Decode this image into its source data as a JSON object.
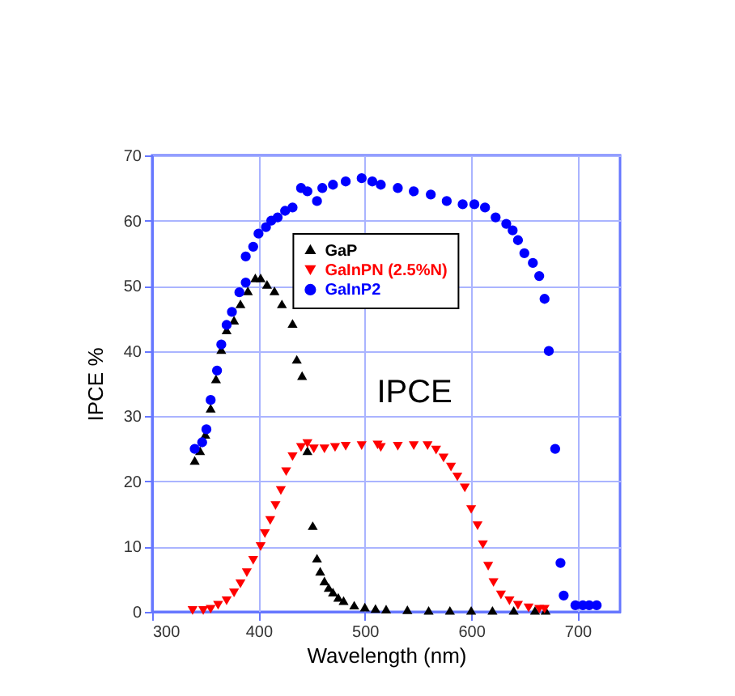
{
  "chart_data": {
    "type": "scatter",
    "xlabel": "Wavelength (nm)",
    "ylabel": "IPCE %",
    "annotations": [
      "IPCE"
    ],
    "xlim": [
      300,
      740
    ],
    "xticks": [
      300,
      400,
      500,
      600,
      700
    ],
    "ylim": [
      0,
      70
    ],
    "yticks": [
      0,
      10,
      20,
      30,
      40,
      50,
      60,
      70
    ],
    "grid": true,
    "legend": "top",
    "series": [
      {
        "name": "GaP",
        "color": "#000000",
        "marker": "triangle",
        "x": [
          340,
          345,
          350,
          355,
          360,
          365,
          370,
          377,
          383,
          390,
          397,
          402,
          408,
          415,
          422,
          432,
          436,
          441,
          446,
          451,
          455,
          458,
          462,
          466,
          470,
          475,
          480,
          490,
          500,
          510,
          520,
          540,
          560,
          580,
          600,
          620,
          640,
          660,
          670
        ],
        "values": [
          23,
          24.5,
          27,
          31,
          35.5,
          40,
          43,
          44.5,
          47,
          49,
          51,
          51,
          50,
          49,
          47,
          44,
          38.5,
          36,
          24.5,
          13,
          8,
          6,
          4.5,
          3.5,
          2.8,
          2,
          1.5,
          0.8,
          0.5,
          0.3,
          0.2,
          0.1,
          0,
          0,
          0,
          0,
          0,
          0,
          0
        ]
      },
      {
        "name": "GaInPN (2.5%N)",
        "color": "#ff0000",
        "marker": "triangle-down",
        "x": [
          338,
          348,
          355,
          362,
          370,
          377,
          383,
          389,
          395,
          402,
          406,
          411,
          416,
          421,
          426,
          432,
          440,
          446,
          452,
          462,
          472,
          482,
          497,
          512,
          515,
          531,
          546,
          559,
          567,
          574,
          581,
          587,
          594,
          600,
          606,
          611,
          616,
          621,
          628,
          636,
          644,
          654,
          664,
          669
        ],
        "values": [
          0.2,
          0.2,
          0.4,
          1,
          1.7,
          2.9,
          4.3,
          6,
          7.9,
          10,
          12,
          14,
          16.3,
          18.6,
          21.5,
          23.8,
          25.2,
          25.8,
          25,
          25,
          25.2,
          25.4,
          25.5,
          25.6,
          25.2,
          25.4,
          25.5,
          25.5,
          24.8,
          23.6,
          22.2,
          20.7,
          19,
          15.7,
          13.2,
          10.3,
          7,
          4.5,
          2.6,
          1.7,
          1,
          0.6,
          0.4,
          0.4
        ]
      },
      {
        "name": "GaInP2",
        "color": "#0000ff",
        "marker": "circle",
        "x": [
          340,
          347,
          351,
          355,
          361,
          365,
          370,
          375,
          382,
          388,
          388,
          395,
          400,
          407,
          412,
          418,
          425,
          432,
          440,
          446,
          455,
          460,
          470,
          482,
          497,
          507,
          515,
          531,
          546,
          562,
          577,
          592,
          603,
          613,
          623,
          633,
          639,
          644,
          650,
          658,
          664,
          669,
          673,
          679,
          684,
          687,
          698,
          705,
          711,
          718
        ],
        "values": [
          25,
          26,
          28,
          32.5,
          37,
          41,
          44,
          46,
          49,
          50.5,
          54.5,
          56,
          58,
          59,
          60,
          60.5,
          61.5,
          62,
          65,
          64.5,
          63,
          65,
          65.5,
          66,
          66.5,
          66,
          65.5,
          65,
          64.5,
          64,
          63,
          62.5,
          62.5,
          62,
          60.5,
          59.5,
          58.5,
          57,
          55,
          53.5,
          51.5,
          48,
          40,
          25,
          7.5,
          2.5,
          1,
          1,
          1,
          1
        ]
      }
    ]
  }
}
